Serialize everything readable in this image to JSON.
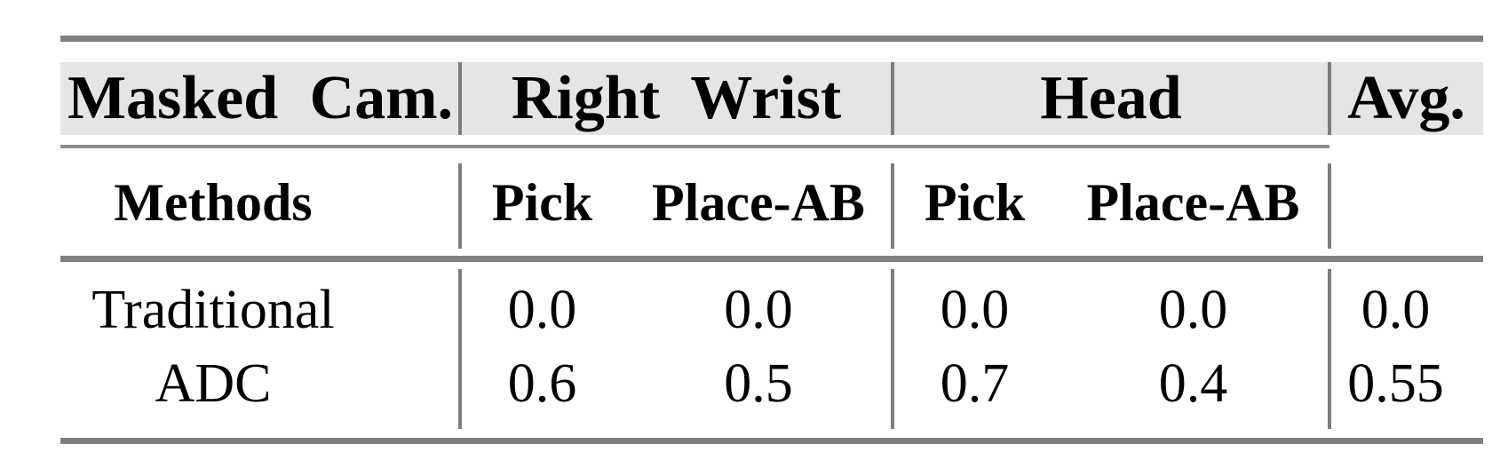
{
  "colors": {
    "background": "#ffffff",
    "header_band": "#e5e5e5",
    "rule": "#7f7f7f",
    "cmid_rule": "#8c8c8c",
    "vline": "#7d7d7d",
    "text": "#000000"
  },
  "table": {
    "header_row1": {
      "label": "Masked Cam.",
      "group_right_wrist": "Right Wrist",
      "group_head": "Head",
      "avg": "Avg."
    },
    "header_row2": {
      "label": "Methods",
      "rw_pick": "Pick",
      "rw_place_ab": "Place-AB",
      "head_pick": "Pick",
      "head_place_ab": "Place-AB",
      "avg": ""
    },
    "rows": [
      {
        "method": "Traditional",
        "values": [
          "0.0",
          "0.0",
          "0.0",
          "0.0",
          "0.0"
        ]
      },
      {
        "method": "ADC",
        "values": [
          "0.6",
          "0.5",
          "0.7",
          "0.4",
          "0.55"
        ]
      }
    ]
  },
  "chart_data": {
    "type": "table",
    "column_groups": [
      "Masked Cam.",
      "Right Wrist",
      "Head",
      "Avg."
    ],
    "columns": [
      "Methods",
      "Right Wrist Pick",
      "Right Wrist Place-AB",
      "Head Pick",
      "Head Place-AB",
      "Avg."
    ],
    "rows": [
      [
        "Traditional",
        0.0,
        0.0,
        0.0,
        0.0,
        0.0
      ],
      [
        "ADC",
        0.6,
        0.5,
        0.7,
        0.4,
        0.55
      ]
    ]
  }
}
